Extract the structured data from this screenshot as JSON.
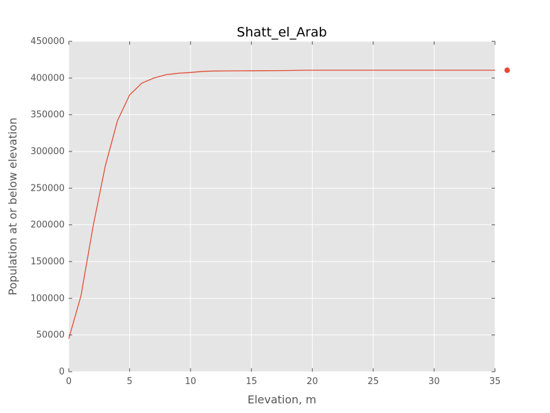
{
  "chart_data": {
    "type": "line",
    "title": "Shatt_el_Arab",
    "xlabel": "Elevation, m",
    "ylabel": "Population at or below elevation",
    "xlim": [
      0,
      35
    ],
    "ylim": [
      0,
      450000
    ],
    "x_ticks": [
      0,
      5,
      10,
      15,
      20,
      25,
      30,
      35
    ],
    "y_ticks": [
      0,
      50000,
      100000,
      150000,
      200000,
      250000,
      300000,
      350000,
      400000,
      450000
    ],
    "grid": true,
    "series": [
      {
        "x": [
          0,
          1,
          2,
          3,
          4,
          5,
          6,
          7,
          8,
          9,
          10,
          11,
          12,
          13,
          14,
          15,
          16,
          17,
          18,
          19,
          20,
          25,
          30,
          35
        ],
        "y": [
          45000,
          103000,
          198000,
          280000,
          342000,
          377000,
          393000,
          400000,
          404500,
          406500,
          407500,
          409000,
          409500,
          409700,
          409800,
          409900,
          410000,
          410100,
          410200,
          410500,
          410600,
          410600,
          410600,
          410600
        ]
      }
    ],
    "marker_point": {
      "x": 36,
      "y": 410600
    },
    "colors": {
      "line": "#e24a33",
      "plot_background": "#e5e5e5",
      "grid": "#ffffff",
      "text": "#555555"
    }
  }
}
